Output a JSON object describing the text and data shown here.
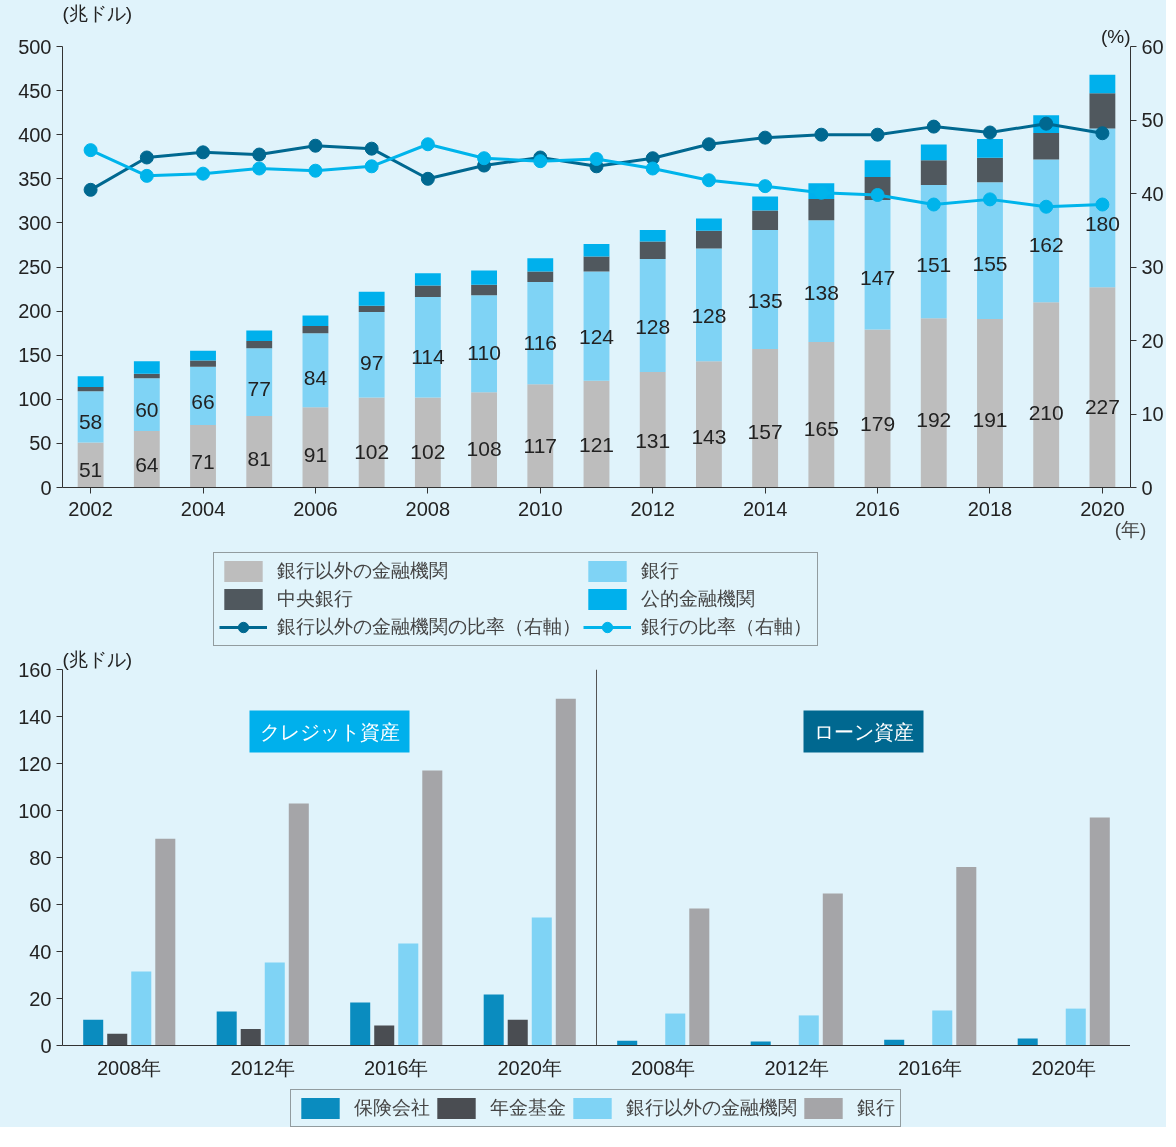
{
  "chart_data": [
    {
      "type": "bar",
      "stacked": true,
      "x": [
        2002,
        2003,
        2004,
        2005,
        2006,
        2007,
        2008,
        2009,
        2010,
        2011,
        2012,
        2013,
        2014,
        2015,
        2016,
        2017,
        2018,
        2019,
        2020
      ],
      "xlim": [
        2001.5,
        2020.5
      ],
      "xticks": [
        2002,
        2004,
        2006,
        2008,
        2010,
        2012,
        2014,
        2016,
        2018,
        2020
      ],
      "xlabel": "(年)",
      "ylabel": "(兆ドル)",
      "y2label": "(%)",
      "ylim": [
        0,
        500
      ],
      "yticks": [
        0,
        50,
        100,
        150,
        200,
        250,
        300,
        350,
        400,
        450,
        500
      ],
      "y2lim": [
        0,
        60
      ],
      "y2ticks": [
        0,
        10,
        20,
        30,
        40,
        50,
        60
      ],
      "legend": "bottom",
      "marker": "circle",
      "series": [
        {
          "name": "銀行以外の金融機関",
          "color": "#bdbdbd",
          "values": [
            51,
            64,
            71,
            81,
            91,
            102,
            102,
            108,
            117,
            121,
            131,
            143,
            157,
            165,
            179,
            192,
            191,
            210,
            227
          ],
          "value_labels": [
            "51",
            "64",
            "71",
            "81",
            "91",
            "102",
            "102",
            "108",
            "117",
            "121",
            "131",
            "143",
            "157",
            "165",
            "179",
            "192",
            "191",
            "210",
            "227"
          ]
        },
        {
          "name": "銀行",
          "color": "#7fd3f5",
          "values": [
            58,
            60,
            66,
            77,
            84,
            97,
            114,
            110,
            116,
            124,
            128,
            128,
            135,
            138,
            147,
            151,
            155,
            162,
            180
          ],
          "value_labels": [
            "58",
            "60",
            "66",
            "77",
            "84",
            "97",
            "114",
            "110",
            "116",
            "124",
            "128",
            "128",
            "135",
            "138",
            "147",
            "151",
            "155",
            "162",
            "180"
          ]
        },
        {
          "name": "中央銀行",
          "color": "#50585e",
          "values": [
            5,
            5,
            7,
            8,
            8,
            7,
            13,
            12,
            12,
            17,
            20,
            20,
            22,
            24,
            26,
            28,
            28,
            30,
            40
          ]
        },
        {
          "name": "公的金融機関",
          "color": "#00b0ec",
          "values": [
            12,
            14,
            11,
            12,
            12,
            16,
            14,
            16,
            15,
            14,
            13,
            14,
            16,
            18,
            19,
            18,
            21,
            20,
            21
          ]
        },
        {
          "name": "銀行以外の金融機関の比率（右軸）",
          "type": "line",
          "axis": "y2",
          "color": "#006890",
          "values": [
            40.5,
            44.9,
            45.6,
            45.3,
            46.5,
            46.1,
            42.0,
            43.8,
            44.9,
            43.7,
            44.8,
            46.7,
            47.6,
            48.0,
            48.0,
            49.1,
            48.3,
            49.5,
            48.2
          ]
        },
        {
          "name": "銀行の比率（右軸）",
          "type": "line",
          "axis": "y2",
          "color": "#00b4eb",
          "values": [
            45.9,
            42.4,
            42.7,
            43.4,
            43.1,
            43.7,
            46.7,
            44.8,
            44.4,
            44.7,
            43.4,
            41.8,
            41.0,
            40.1,
            39.8,
            38.5,
            39.2,
            38.2,
            38.5
          ]
        }
      ]
    },
    {
      "type": "bar",
      "categories": [
        "2008年",
        "2012年",
        "2016年",
        "2020年",
        "2008年",
        "2012年",
        "2016年",
        "2020年"
      ],
      "ylabel": "(兆ドル)",
      "ylim": [
        0,
        160
      ],
      "yticks": [
        0,
        20,
        40,
        60,
        80,
        100,
        120,
        140,
        160
      ],
      "legend": "bottom",
      "annotations": [
        "クレジット資産",
        "ローン資産"
      ],
      "series": [
        {
          "name": "保険会社",
          "color": "#0a8cbf",
          "values": [
            11,
            14.5,
            18.3,
            21.7,
            2,
            1.7,
            2.5,
            3
          ]
        },
        {
          "name": "年金基金",
          "color": "#4a4d52",
          "values": [
            5,
            7,
            8.5,
            11,
            0.2,
            0.2,
            0.2,
            0.2
          ]
        },
        {
          "name": "銀行以外の金融機関",
          "color": "#7fd3f5",
          "values": [
            31.5,
            35.3,
            43.4,
            54.5,
            13.6,
            12.8,
            14.9,
            15.7
          ]
        },
        {
          "name": "銀行",
          "color": "#a5a5a8",
          "values": [
            88,
            103,
            117,
            147.6,
            58.3,
            64.7,
            76,
            97
          ]
        }
      ]
    }
  ]
}
